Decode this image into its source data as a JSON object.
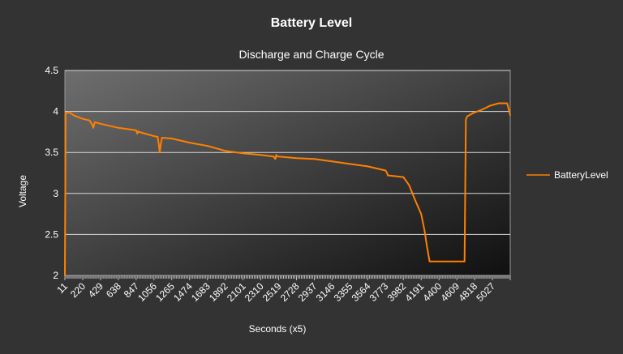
{
  "chart_data": {
    "type": "line",
    "title": "Battery Level",
    "subtitle": "Discharge and Charge Cycle",
    "xlabel": "Seconds (x5)",
    "ylabel": "Voltage",
    "ylim": [
      2,
      4.5
    ],
    "yticks": [
      "2",
      "2.5",
      "3",
      "3.5",
      "4",
      "4.5"
    ],
    "xlim": [
      11,
      5236
    ],
    "xticks": [
      "11",
      "220",
      "429",
      "638",
      "847",
      "1056",
      "1265",
      "1474",
      "1683",
      "1892",
      "2101",
      "2310",
      "2519",
      "2728",
      "2937",
      "3146",
      "3355",
      "3564",
      "3773",
      "3982",
      "4191",
      "4400",
      "4609",
      "4818",
      "5027"
    ],
    "grid": true,
    "legend_position": "right",
    "colors": {
      "series": "#ff8000",
      "background": "#333333",
      "gridline": "#d9d9d9"
    },
    "series": [
      {
        "name": "BatteryLevel",
        "x": [
          11,
          20,
          60,
          120,
          220,
          300,
          330,
          345,
          360,
          429,
          638,
          847,
          860,
          870,
          880,
          1056,
          1100,
          1112,
          1124,
          1136,
          1150,
          1265,
          1474,
          1683,
          1892,
          2101,
          2310,
          2460,
          2480,
          2490,
          2500,
          2519,
          2728,
          2937,
          3146,
          3355,
          3564,
          3773,
          3790,
          3800,
          3982,
          4050,
          4120,
          4191,
          4230,
          4260,
          4290,
          4300,
          4320,
          4700,
          4715,
          4730,
          4800,
          4900,
          5000,
          5100,
          5200,
          5225,
          5236
        ],
        "y": [
          2.0,
          3.98,
          3.99,
          3.95,
          3.91,
          3.89,
          3.84,
          3.8,
          3.87,
          3.85,
          3.8,
          3.77,
          3.73,
          3.76,
          3.75,
          3.7,
          3.69,
          3.6,
          3.5,
          3.6,
          3.68,
          3.67,
          3.62,
          3.58,
          3.52,
          3.49,
          3.47,
          3.45,
          3.42,
          3.47,
          3.45,
          3.45,
          3.43,
          3.42,
          3.39,
          3.36,
          3.33,
          3.28,
          3.25,
          3.22,
          3.2,
          3.1,
          2.92,
          2.75,
          2.55,
          2.35,
          2.17,
          2.17,
          2.17,
          2.17,
          3.9,
          3.94,
          3.98,
          4.02,
          4.07,
          4.1,
          4.1,
          4.0,
          3.95
        ]
      }
    ]
  }
}
